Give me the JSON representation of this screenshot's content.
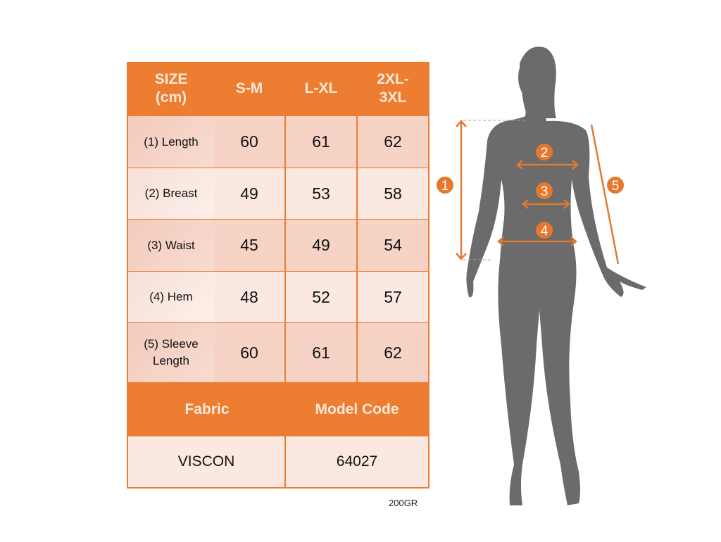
{
  "table": {
    "headers": [
      "SIZE\n(cm)",
      "S-M",
      "L-XL",
      "2XL-\n3XL"
    ],
    "rows": [
      {
        "label": "(1) Length",
        "values": [
          "60",
          "61",
          "62"
        ]
      },
      {
        "label": "(2) Breast",
        "values": [
          "49",
          "53",
          "58"
        ]
      },
      {
        "label": "(3) Waist",
        "values": [
          "45",
          "49",
          "54"
        ]
      },
      {
        "label": "(4) Hem",
        "values": [
          "48",
          "52",
          "57"
        ]
      },
      {
        "label": "(5) Sleeve\nLength",
        "values": [
          "60",
          "61",
          "62"
        ]
      }
    ],
    "fabric_label": "Fabric",
    "model_code_label": "Model Code",
    "fabric_value": "VISCON",
    "model_code_value": "64027"
  },
  "footnote": "200GR",
  "figure": {
    "markers": [
      "1",
      "2",
      "3",
      "4",
      "5"
    ]
  },
  "colors": {
    "accent": "#ed7d31",
    "silhouette": "#6b6b6b"
  }
}
